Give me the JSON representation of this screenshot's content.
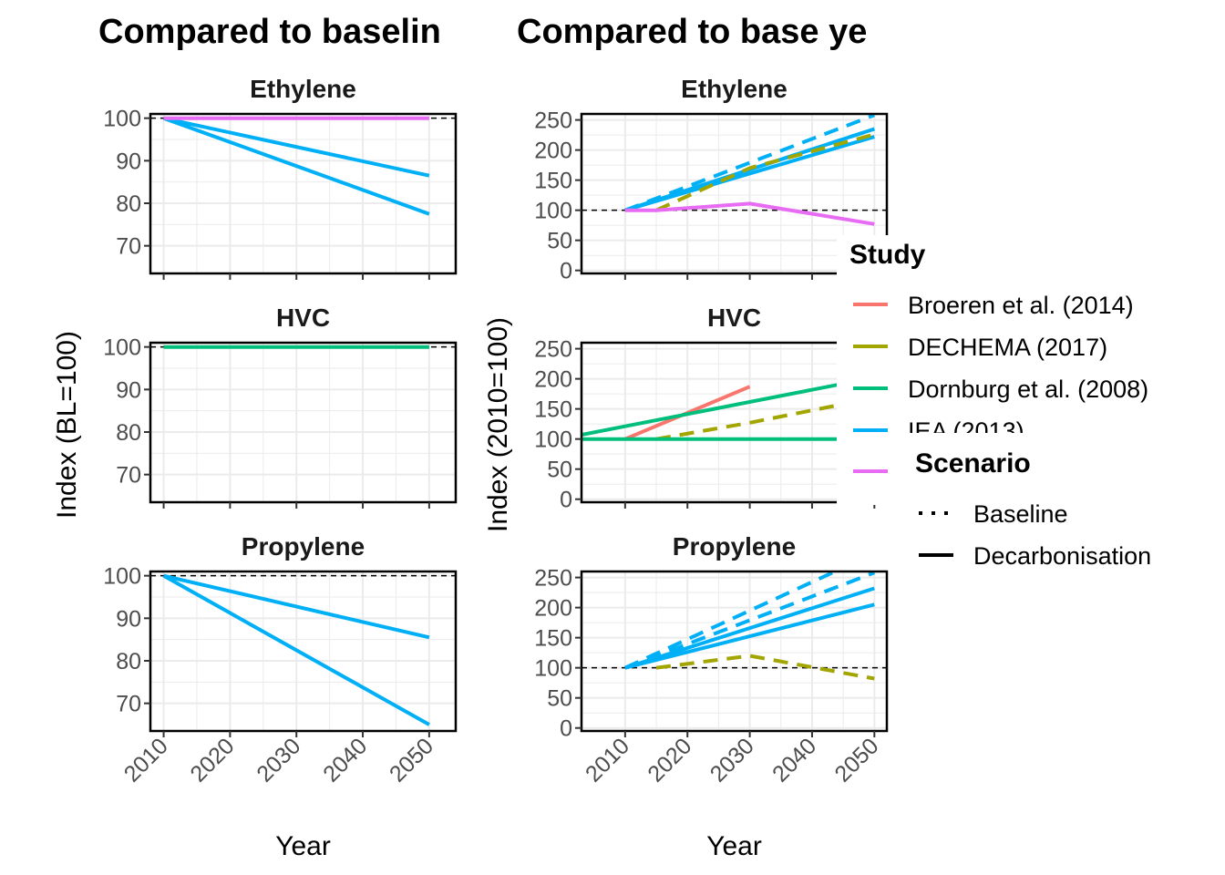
{
  "figure": {
    "left_title": "Compared to baselin",
    "right_title": "Compared to base ye"
  },
  "colors": {
    "Broeren et al. (2014)": "#F8766D",
    "DECHEMA (2017)": "#A3A500",
    "Dornburg et al. (2008)": "#00BF7D",
    "IEA (2013)": "#00B0F6",
    "purple": "#E76BF3",
    "ref": "#000000",
    "grid": "#ebebeb"
  },
  "legend": {
    "study_title": "Study",
    "studies": [
      "Broeren et al. (2014)",
      "DECHEMA (2017)",
      "Dornburg et al. (2008)",
      "IEA (2013)",
      ""
    ],
    "scenario_title": "Scenario",
    "scenarios": [
      "Baseline",
      "Decarbonisation"
    ]
  },
  "chart_data": [
    {
      "type": "line",
      "title": "Compared to baselin",
      "xlabel": "Year",
      "ylabel": "Index (BL=100)",
      "xlim": [
        2008,
        2054
      ],
      "x_ticks": [
        2010,
        2020,
        2030,
        2040,
        2050
      ],
      "panels": [
        {
          "label": "Ethylene",
          "ylim": [
            63.5,
            101
          ],
          "y_ticks": [
            70,
            80,
            90,
            100
          ],
          "ref_line": 100,
          "series": [
            {
              "study": "IEA (2013)",
              "scenario": "Decarbonisation",
              "x": [
                2010,
                2050
              ],
              "y": [
                100,
                86.5
              ]
            },
            {
              "study": "IEA (2013)",
              "scenario": "Decarbonisation",
              "x": [
                2010,
                2050
              ],
              "y": [
                100,
                77.5
              ]
            },
            {
              "study": "",
              "scenario": "Decarbonisation",
              "x": [
                2010,
                2050
              ],
              "y": [
                100,
                100
              ]
            }
          ]
        },
        {
          "label": "HVC",
          "ylim": [
            63.5,
            101
          ],
          "y_ticks": [
            70,
            80,
            90,
            100
          ],
          "ref_line": 100,
          "series": [
            {
              "study": "Dornburg et al. (2008)",
              "scenario": "Decarbonisation",
              "x": [
                2010,
                2050
              ],
              "y": [
                100,
                100
              ]
            }
          ]
        },
        {
          "label": "Propylene",
          "ylim": [
            63.5,
            101
          ],
          "y_ticks": [
            70,
            80,
            90,
            100
          ],
          "ref_line": 100,
          "series": [
            {
              "study": "IEA (2013)",
              "scenario": "Decarbonisation",
              "x": [
                2010,
                2050
              ],
              "y": [
                100,
                85.5
              ]
            },
            {
              "study": "IEA (2013)",
              "scenario": "Decarbonisation",
              "x": [
                2010,
                2050
              ],
              "y": [
                100,
                65
              ]
            }
          ]
        }
      ]
    },
    {
      "type": "line",
      "title": "Compared to base ye",
      "xlabel": "Year",
      "ylabel": "Index (2010=100)",
      "xlim": [
        2003,
        2052
      ],
      "x_ticks": [
        2010,
        2020,
        2030,
        2040,
        2050
      ],
      "panels": [
        {
          "label": "Ethylene",
          "ylim": [
            -5,
            260
          ],
          "y_ticks": [
            0,
            50,
            100,
            150,
            200,
            250
          ],
          "ref_line": 100,
          "series": [
            {
              "study": "IEA (2013)",
              "scenario": "Baseline",
              "x": [
                2010,
                2050
              ],
              "y": [
                100,
                258
              ]
            },
            {
              "study": "IEA (2013)",
              "scenario": "Baseline",
              "x": [
                2010,
                2050
              ],
              "y": [
                100,
                235
              ]
            },
            {
              "study": "IEA (2013)",
              "scenario": "Decarbonisation",
              "x": [
                2010,
                2050
              ],
              "y": [
                100,
                235
              ]
            },
            {
              "study": "IEA (2013)",
              "scenario": "Decarbonisation",
              "x": [
                2010,
                2050
              ],
              "y": [
                100,
                222
              ]
            },
            {
              "study": "DECHEMA (2017)",
              "scenario": "Baseline",
              "x": [
                2015,
                2030,
                2050
              ],
              "y": [
                100,
                170,
                226
              ]
            },
            {
              "study": "",
              "scenario": "Decarbonisation",
              "x": [
                2010,
                2015,
                2030,
                2050
              ],
              "y": [
                100,
                100,
                111,
                77
              ]
            }
          ]
        },
        {
          "label": "HVC",
          "ylim": [
            -5,
            260
          ],
          "y_ticks": [
            0,
            50,
            100,
            150,
            200,
            250
          ],
          "ref_line": 100,
          "series": [
            {
              "study": "Broeren et al. (2014)",
              "scenario": "Decarbonisation",
              "x": [
                2010,
                2030
              ],
              "y": [
                100,
                187
              ]
            },
            {
              "study": "DECHEMA (2017)",
              "scenario": "Baseline",
              "x": [
                2015,
                2030,
                2045
              ],
              "y": [
                100,
                127,
                158
              ]
            },
            {
              "study": "Dornburg et al. (2008)",
              "scenario": "Decarbonisation",
              "x": [
                2003,
                2050
              ],
              "y": [
                107,
                202
              ]
            },
            {
              "study": "Dornburg et al. (2008)",
              "scenario": "Decarbonisation",
              "x": [
                2003,
                2050
              ],
              "y": [
                100,
                100
              ]
            }
          ]
        },
        {
          "label": "Propylene",
          "ylim": [
            -5,
            260
          ],
          "y_ticks": [
            0,
            50,
            100,
            150,
            200,
            250
          ],
          "ref_line": 100,
          "series": [
            {
              "study": "IEA (2013)",
              "scenario": "Baseline",
              "x": [
                2010,
                2050
              ],
              "y": [
                100,
                290
              ]
            },
            {
              "study": "IEA (2013)",
              "scenario": "Baseline",
              "x": [
                2010,
                2050
              ],
              "y": [
                100,
                258
              ]
            },
            {
              "study": "IEA (2013)",
              "scenario": "Decarbonisation",
              "x": [
                2010,
                2050
              ],
              "y": [
                100,
                232
              ]
            },
            {
              "study": "IEA (2013)",
              "scenario": "Decarbonisation",
              "x": [
                2010,
                2050
              ],
              "y": [
                100,
                205
              ]
            },
            {
              "study": "DECHEMA (2017)",
              "scenario": "Baseline",
              "x": [
                2015,
                2030,
                2050
              ],
              "y": [
                100,
                120,
                82
              ]
            }
          ]
        }
      ]
    }
  ]
}
